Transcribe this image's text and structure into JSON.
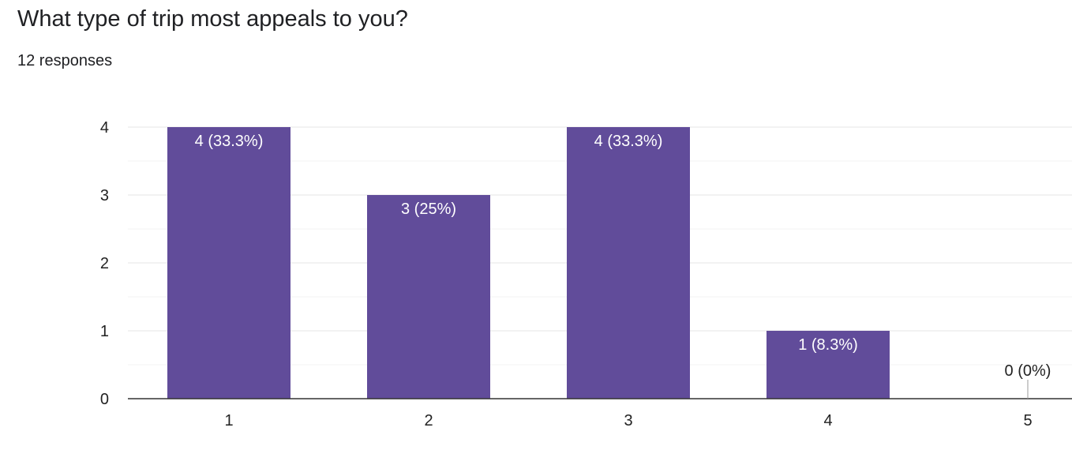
{
  "question": {
    "title": "What type of trip most appeals to you?",
    "responses": "12 responses"
  },
  "colors": {
    "bar": "#614c9a",
    "grid_major": "#e6e6e6",
    "grid_minor": "#f3f3f3",
    "axis": "#333333"
  },
  "chart_data": {
    "type": "bar",
    "categories": [
      "1",
      "2",
      "3",
      "4",
      "5"
    ],
    "values": [
      4,
      3,
      4,
      1,
      0
    ],
    "data_labels": [
      "4 (33.3%)",
      "3 (25%)",
      "4 (33.3%)",
      "1 (8.3%)",
      "0 (0%)"
    ],
    "yticks": [
      0,
      1,
      2,
      3,
      4
    ],
    "ylim": [
      0,
      4
    ],
    "grid": true,
    "legend": "none"
  }
}
